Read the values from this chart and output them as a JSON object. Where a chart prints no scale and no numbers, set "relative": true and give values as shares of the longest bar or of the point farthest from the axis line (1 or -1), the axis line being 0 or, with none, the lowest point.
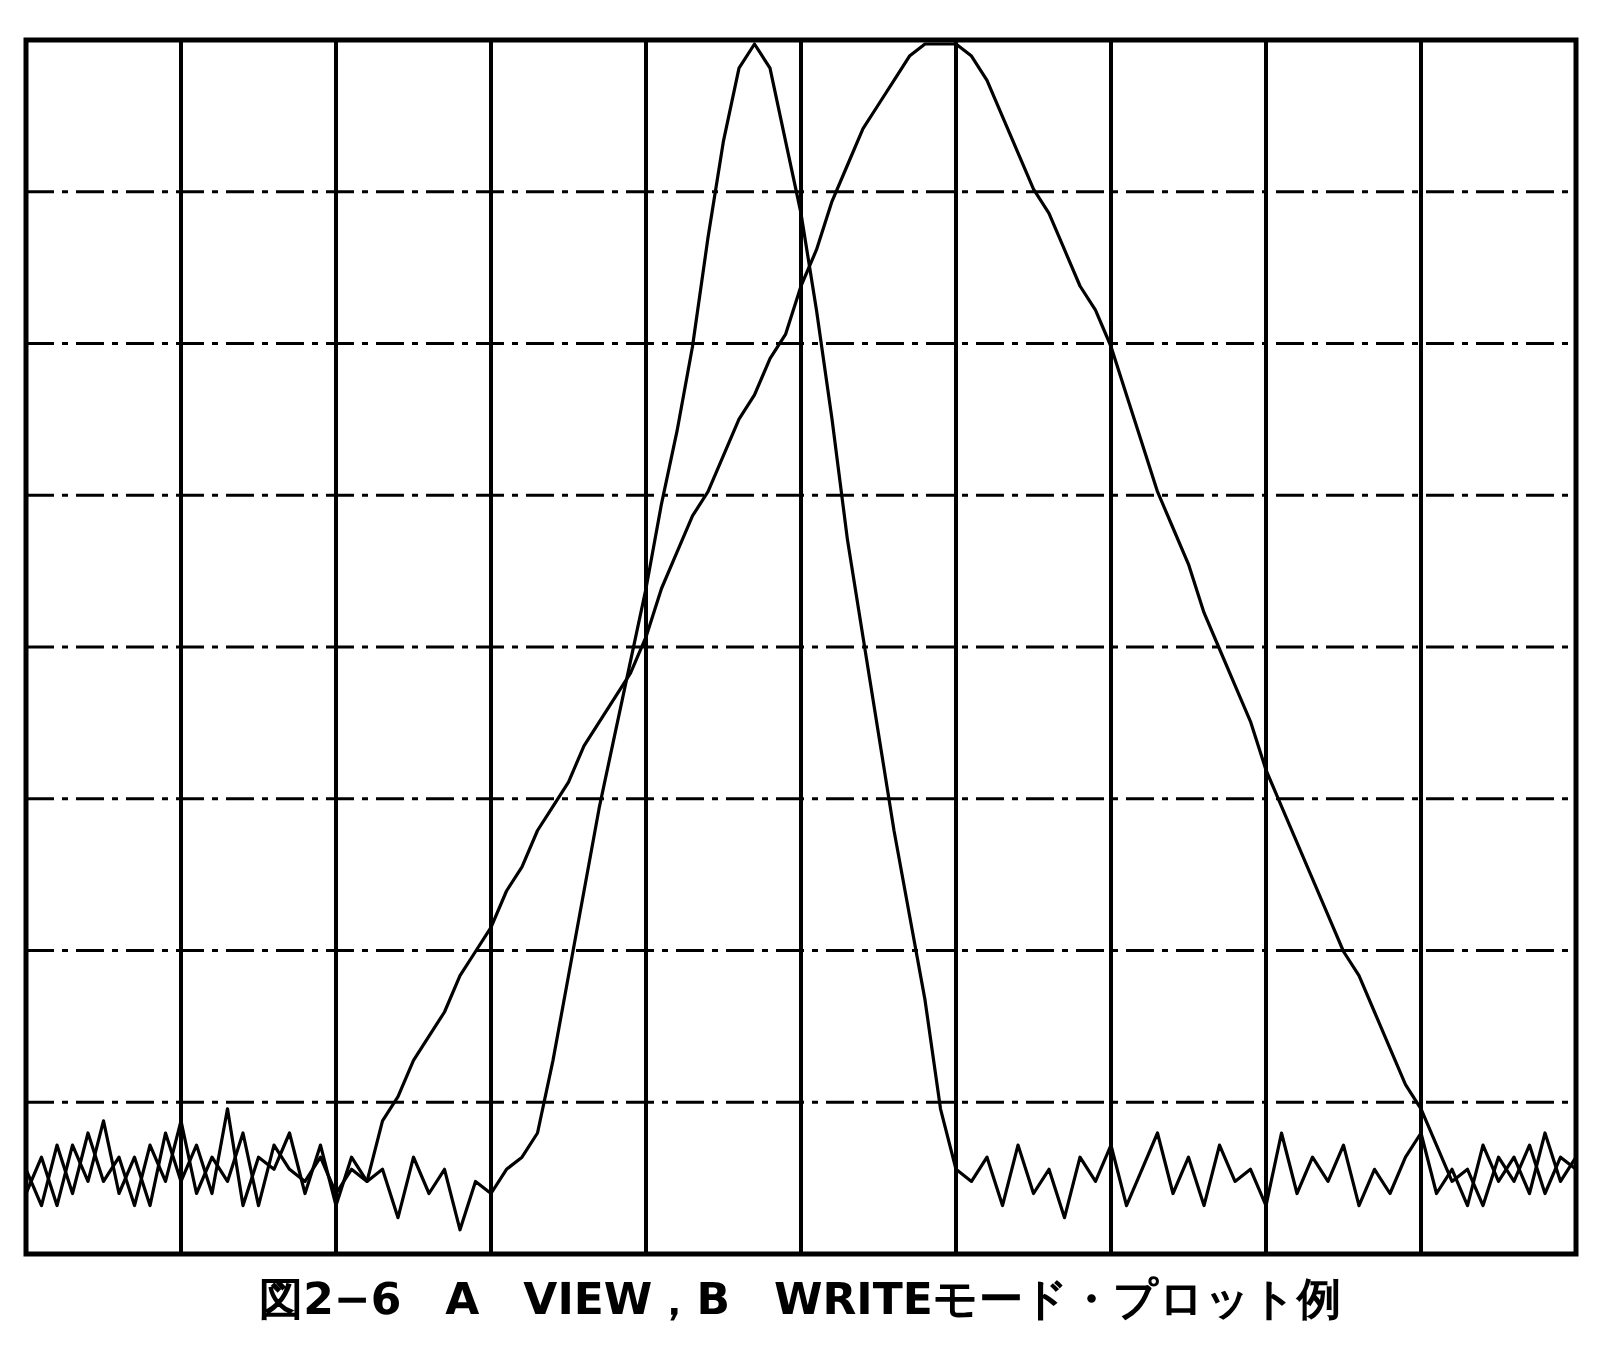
{
  "chart_data": {
    "type": "line",
    "relative": true,
    "grid": true,
    "line_style": "solid",
    "marker": "none",
    "categories": [
      null,
      null,
      null,
      null,
      null,
      null,
      null,
      null,
      null,
      null,
      null,
      null,
      null,
      null,
      null,
      null,
      null,
      null,
      null,
      null,
      null,
      null,
      null,
      null,
      null,
      null,
      null,
      null,
      null,
      null,
      null,
      null,
      null,
      null,
      null,
      null,
      null,
      null,
      null,
      null,
      null,
      null,
      null,
      null,
      null,
      null,
      null,
      null,
      null,
      null,
      null,
      null,
      null,
      null,
      null,
      null,
      null,
      null,
      null,
      null,
      null,
      null,
      null,
      null,
      null,
      null,
      null,
      null,
      null,
      null,
      null,
      null,
      null,
      null,
      null,
      null,
      null,
      null,
      null,
      null,
      null,
      null,
      null,
      null,
      null,
      null,
      null,
      null,
      null,
      null,
      null,
      null,
      null,
      null,
      null,
      null,
      null,
      null,
      null,
      null,
      null
    ],
    "series": [
      {
        "color": "#000000",
        "values": [
          0.05,
          0.08,
          0.04,
          0.09,
          0.06,
          0.11,
          0.05,
          0.08,
          0.04,
          0.1,
          0.06,
          0.09,
          0.05,
          0.12,
          0.04,
          0.08,
          0.07,
          0.1,
          0.05,
          0.09,
          0.04,
          0.08,
          0.06,
          0.07,
          0.03,
          0.08,
          0.05,
          0.07,
          0.02,
          0.06,
          0.05,
          0.07,
          0.08,
          0.1,
          0.16,
          0.23,
          0.3,
          0.37,
          0.43,
          0.49,
          0.55,
          0.62,
          0.68,
          0.75,
          0.84,
          0.92,
          0.98,
          1.0,
          0.98,
          0.92,
          0.86,
          0.78,
          0.69,
          0.59,
          0.51,
          0.43,
          0.35,
          0.28,
          0.21,
          0.12,
          0.07,
          0.06,
          0.08,
          0.04,
          0.09,
          0.05,
          0.07,
          0.03,
          0.08,
          0.06,
          0.09,
          0.04,
          0.07,
          0.1,
          0.05,
          0.08,
          0.04,
          0.09,
          0.06,
          0.07,
          0.04,
          0.1,
          0.05,
          0.08,
          0.06,
          0.09,
          0.04,
          0.07,
          0.05,
          0.08,
          0.1,
          0.05,
          0.07,
          0.04,
          0.09,
          0.06,
          0.08,
          0.05,
          0.1,
          0.06,
          0.08
        ]
      },
      {
        "color": "#000000",
        "values": [
          0.07,
          0.04,
          0.09,
          0.05,
          0.1,
          0.06,
          0.08,
          0.04,
          0.09,
          0.06,
          0.11,
          0.05,
          0.08,
          0.06,
          0.1,
          0.04,
          0.09,
          0.07,
          0.06,
          0.08,
          0.05,
          0.07,
          0.06,
          0.11,
          0.13,
          0.16,
          0.18,
          0.2,
          0.23,
          0.25,
          0.27,
          0.3,
          0.32,
          0.35,
          0.37,
          0.39,
          0.42,
          0.44,
          0.46,
          0.48,
          0.51,
          0.55,
          0.58,
          0.61,
          0.63,
          0.66,
          0.69,
          0.71,
          0.74,
          0.76,
          0.8,
          0.83,
          0.87,
          0.9,
          0.93,
          0.95,
          0.97,
          0.99,
          1.0,
          1.0,
          1.0,
          0.99,
          0.97,
          0.94,
          0.91,
          0.88,
          0.86,
          0.83,
          0.8,
          0.78,
          0.75,
          0.71,
          0.67,
          0.63,
          0.6,
          0.57,
          0.53,
          0.5,
          0.47,
          0.44,
          0.4,
          0.37,
          0.34,
          0.31,
          0.28,
          0.25,
          0.23,
          0.2,
          0.17,
          0.14,
          0.12,
          0.09,
          0.06,
          0.07,
          0.04,
          0.08,
          0.06,
          0.09,
          0.05,
          0.08,
          0.07
        ]
      }
    ],
    "annotations": [
      "図2−6　A　VIEW，B　WRITEモード・プロット例"
    ]
  }
}
